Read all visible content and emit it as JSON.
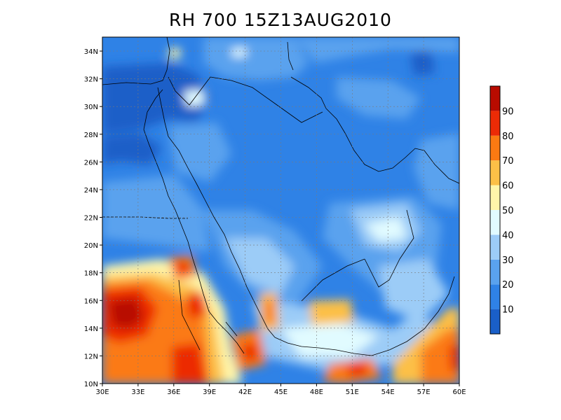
{
  "title": "RH 700 15Z13AUG2010",
  "map": {
    "lat_labels": [
      "34N",
      "32N",
      "30N",
      "28N",
      "26N",
      "24N",
      "22N",
      "20N",
      "18N",
      "16N",
      "14N",
      "12N",
      "10N"
    ],
    "lon_labels": [
      "30E",
      "33E",
      "36E",
      "39E",
      "42E",
      "45E",
      "48E",
      "51E",
      "54E",
      "57E",
      "60E"
    ],
    "gridlines": true
  },
  "colorbar": {
    "labels": [
      "10",
      "20",
      "30",
      "40",
      "50",
      "60",
      "70",
      "80",
      "90"
    ],
    "colors": [
      "#1a5fc8",
      "#2f82e6",
      "#5aa2ee",
      "#9cccf7",
      "#e1fbff",
      "#fff6aa",
      "#fcc047",
      "#fb7a12",
      "#ec2b06",
      "#b80b00"
    ]
  }
}
